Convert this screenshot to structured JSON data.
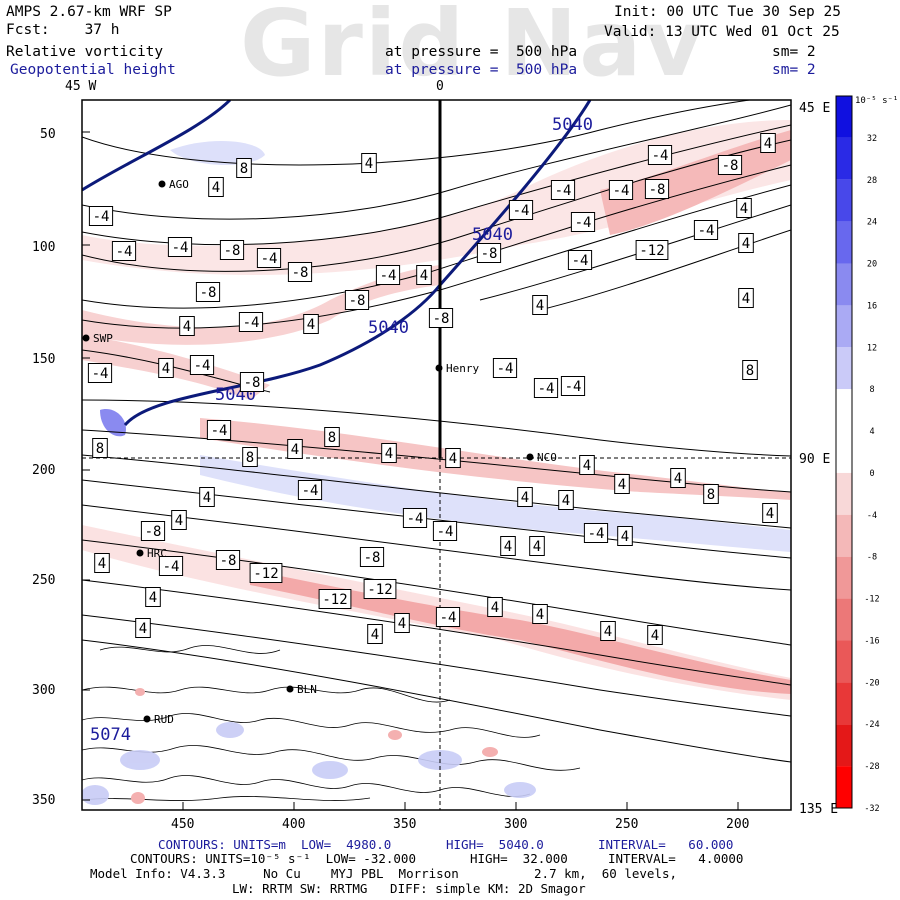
{
  "watermark": "Grid Nav",
  "header": {
    "model": "AMPS 2.67-km WRF SP",
    "fcst": "Fcst:    37 h",
    "field1": "Relative vorticity",
    "field2": "Geopotential height",
    "init": "Init: 00 UTC Tue 30 Sep 25",
    "valid": "Valid: 13 UTC Wed 01 Oct 25",
    "pressure1": "at pressure =  500 hPa",
    "pressure2": "at pressure =  500 hPa",
    "sm1": "sm= 2",
    "sm2": "sm= 2"
  },
  "axes": {
    "top_left_lon": "45 W",
    "top_mid_lon": "0",
    "right_top_lon": "45 E",
    "right_mid_lon": "90 E",
    "right_bottom_lon": "135 E",
    "y_ticks": [
      "50",
      "100",
      "150",
      "200",
      "250",
      "300",
      "350"
    ],
    "x_ticks": [
      "450",
      "400",
      "350",
      "300",
      "250",
      "200"
    ]
  },
  "colorbar": {
    "unit": "10⁻⁵ s⁻¹",
    "labels": [
      "32",
      "28",
      "24",
      "20",
      "16",
      "12",
      "8",
      "4",
      "0",
      "-4",
      "-8",
      "-12",
      "-16",
      "-20",
      "-24",
      "-28",
      "-32"
    ],
    "colors": [
      "#1010e0",
      "#2a2ae6",
      "#4848ea",
      "#6868ee",
      "#8a8af0",
      "#aaaaf4",
      "#cacaf8",
      "#ffffff",
      "#ffffff",
      "#f8d8d8",
      "#f4b8b8",
      "#f09898",
      "#ec7878",
      "#ea5858",
      "#e83838",
      "#e41818",
      "#ff0000"
    ]
  },
  "stations": [
    {
      "name": "AGO"
    },
    {
      "name": "SWP"
    },
    {
      "name": "Henry"
    },
    {
      "name": "NCO"
    },
    {
      "name": "HRC"
    },
    {
      "name": "BLN"
    },
    {
      "name": "RUD"
    }
  ],
  "height_labels": [
    "5040",
    "5040",
    "5040",
    "5040",
    "5074"
  ],
  "vort_labels": [
    "8",
    "4",
    "4",
    "-4",
    "4",
    "-4",
    "-4",
    "-4",
    "-8",
    "-8",
    "-4",
    "-4",
    "-4",
    "-8",
    "-4",
    "-4",
    "-12",
    "-4",
    "4",
    "4",
    "-8",
    "-4",
    "4",
    "-8",
    "-4",
    "-8",
    "-8",
    "-4",
    "4",
    "4",
    "4",
    "4",
    "-4",
    "4",
    "-4",
    "-8",
    "-8",
    "-4",
    "-4",
    "-4",
    "8",
    "-4",
    "8",
    "8",
    "4",
    "4",
    "4",
    "4",
    "4",
    "4",
    "8",
    "8",
    "4",
    "4",
    "-4",
    "-8",
    "-4",
    "-4",
    "4",
    "4",
    "4",
    "-4",
    "4",
    "4",
    "4",
    "4",
    "-4",
    "-8",
    "-12",
    "-8",
    "-12",
    "-12",
    "-4",
    "4",
    "4",
    "4",
    "4",
    "4",
    "4",
    "4",
    "4"
  ],
  "footer": {
    "line1_a": "CONTOURS: UNITS=m  LOW=  4980.0",
    "line1_b": "HIGH=  5040.0",
    "line1_c": "INTERVAL=   60.000",
    "line2_a": "CONTOURS: UNITS=10⁻⁵ s⁻¹  LOW= -32.000",
    "line2_b": "HIGH=  32.000",
    "line2_c": "INTERVAL=   4.0000",
    "line3": "Model Info: V4.3.3     No Cu    MYJ PBL  Morrison          2.7 km,  60 levels,",
    "line4": "LW: RRTM SW: RRTMG   DIFF: simple KM: 2D Smagor"
  }
}
